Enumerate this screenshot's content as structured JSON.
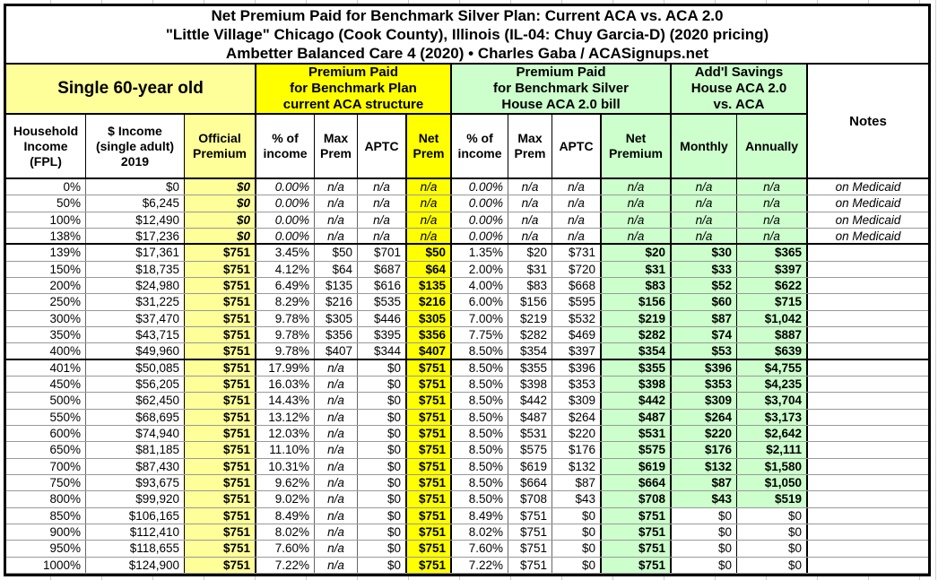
{
  "page": {
    "title_lines": [
      "Net Premium Paid for Benchmark Silver Plan: Current ACA vs. ACA 2.0",
      "\"Little Village\" Chicago (Cook County), Illinois (IL-04: Chuy Garcia-D) (2020 pricing)",
      "Ambetter Balanced Care 4 (2020) • Charles Gaba / ACASignups.net"
    ]
  },
  "colors": {
    "bright_yellow": "#FFFF00",
    "light_yellow": "#FFFF99",
    "light_green": "#CCFFCC",
    "border": "#000000"
  },
  "table": {
    "group_headers": [
      {
        "label": "Single 60-year old",
        "span": 3
      },
      {
        "label": "Premium Paid\nfor Benchmark Plan\ncurrent ACA structure",
        "span": 4
      },
      {
        "label": "Premium Paid\nfor Benchmark Silver\nHouse ACA 2.0 bill",
        "span": 4
      },
      {
        "label": "Add'l Savings\nHouse ACA 2.0\nvs. ACA",
        "span": 2
      }
    ],
    "notes_header": "Notes",
    "column_headers": [
      "Household\nIncome\n(FPL)",
      "$ Income\n(single adult)\n2019",
      "Official\nPremium",
      "% of\nincome",
      "Max\nPrem",
      "APTC",
      "Net\nPrem",
      "% of\nincome",
      "Max\nPrem",
      "APTC",
      "Net\nPremium",
      "Monthly",
      "Annually"
    ]
  },
  "chart_data": {
    "type": "table",
    "title": "Net Premium Paid for Benchmark Silver Plan: Current ACA vs. ACA 2.0",
    "subtitle": "\"Little Village\" Chicago (Cook County), Illinois (IL-04: Chuy Garcia-D) (2020 pricing)",
    "source": "Ambetter Balanced Care 4 (2020) • Charles Gaba / ACASignups.net",
    "columns": [
      "Household Income (FPL)",
      "$ Income (single adult) 2019",
      "Official Premium",
      "ACA % of income",
      "ACA Max Prem",
      "ACA APTC",
      "ACA Net Prem",
      "ACA 2.0 % of income",
      "ACA 2.0 Max Prem",
      "ACA 2.0 APTC",
      "ACA 2.0 Net Premium",
      "Savings Monthly",
      "Savings Annually",
      "Notes"
    ],
    "rows": [
      {
        "cells": [
          "0%",
          "$0",
          "$0",
          "0.00%",
          "n/a",
          "n/a",
          "n/a",
          "0.00%",
          "n/a",
          "n/a",
          "n/a",
          "n/a",
          "n/a",
          "on Medicaid"
        ],
        "style": "medicaid"
      },
      {
        "cells": [
          "50%",
          "$6,245",
          "$0",
          "0.00%",
          "n/a",
          "n/a",
          "n/a",
          "0.00%",
          "n/a",
          "n/a",
          "n/a",
          "n/a",
          "n/a",
          "on Medicaid"
        ],
        "style": "medicaid"
      },
      {
        "cells": [
          "100%",
          "$12,490",
          "$0",
          "0.00%",
          "n/a",
          "n/a",
          "n/a",
          "0.00%",
          "n/a",
          "n/a",
          "n/a",
          "n/a",
          "n/a",
          "on Medicaid"
        ],
        "style": "medicaid"
      },
      {
        "cells": [
          "138%",
          "$17,236",
          "$0",
          "0.00%",
          "n/a",
          "n/a",
          "n/a",
          "0.00%",
          "n/a",
          "n/a",
          "n/a",
          "n/a",
          "n/a",
          "on Medicaid"
        ],
        "style": "medicaid",
        "thickBottom": true
      },
      {
        "cells": [
          "139%",
          "$17,361",
          "$751",
          "3.45%",
          "$50",
          "$701",
          "$50",
          "1.35%",
          "$20",
          "$731",
          "$20",
          "$30",
          "$365",
          ""
        ],
        "style": "normal"
      },
      {
        "cells": [
          "150%",
          "$18,735",
          "$751",
          "4.12%",
          "$64",
          "$687",
          "$64",
          "2.00%",
          "$31",
          "$720",
          "$31",
          "$33",
          "$397",
          ""
        ],
        "style": "normal"
      },
      {
        "cells": [
          "200%",
          "$24,980",
          "$751",
          "6.49%",
          "$135",
          "$616",
          "$135",
          "4.00%",
          "$83",
          "$668",
          "$83",
          "$52",
          "$622",
          ""
        ],
        "style": "normal"
      },
      {
        "cells": [
          "250%",
          "$31,225",
          "$751",
          "8.29%",
          "$216",
          "$535",
          "$216",
          "6.00%",
          "$156",
          "$595",
          "$156",
          "$60",
          "$715",
          ""
        ],
        "style": "normal"
      },
      {
        "cells": [
          "300%",
          "$37,470",
          "$751",
          "9.78%",
          "$305",
          "$446",
          "$305",
          "7.00%",
          "$219",
          "$532",
          "$219",
          "$87",
          "$1,042",
          ""
        ],
        "style": "normal"
      },
      {
        "cells": [
          "350%",
          "$43,715",
          "$751",
          "9.78%",
          "$356",
          "$395",
          "$356",
          "7.75%",
          "$282",
          "$469",
          "$282",
          "$74",
          "$887",
          ""
        ],
        "style": "normal"
      },
      {
        "cells": [
          "400%",
          "$49,960",
          "$751",
          "9.78%",
          "$407",
          "$344",
          "$407",
          "8.50%",
          "$354",
          "$397",
          "$354",
          "$53",
          "$639",
          ""
        ],
        "style": "normal",
        "thickBottom": true
      },
      {
        "cells": [
          "401%",
          "$50,085",
          "$751",
          "17.99%",
          "n/a",
          "$0",
          "$751",
          "8.50%",
          "$355",
          "$396",
          "$355",
          "$396",
          "$4,755",
          ""
        ],
        "style": "normal"
      },
      {
        "cells": [
          "450%",
          "$56,205",
          "$751",
          "16.03%",
          "n/a",
          "$0",
          "$751",
          "8.50%",
          "$398",
          "$353",
          "$398",
          "$353",
          "$4,235",
          ""
        ],
        "style": "normal"
      },
      {
        "cells": [
          "500%",
          "$62,450",
          "$751",
          "14.43%",
          "n/a",
          "$0",
          "$751",
          "8.50%",
          "$442",
          "$309",
          "$442",
          "$309",
          "$3,704",
          ""
        ],
        "style": "normal"
      },
      {
        "cells": [
          "550%",
          "$68,695",
          "$751",
          "13.12%",
          "n/a",
          "$0",
          "$751",
          "8.50%",
          "$487",
          "$264",
          "$487",
          "$264",
          "$3,173",
          ""
        ],
        "style": "normal"
      },
      {
        "cells": [
          "600%",
          "$74,940",
          "$751",
          "12.03%",
          "n/a",
          "$0",
          "$751",
          "8.50%",
          "$531",
          "$220",
          "$531",
          "$220",
          "$2,642",
          ""
        ],
        "style": "normal"
      },
      {
        "cells": [
          "650%",
          "$81,185",
          "$751",
          "11.10%",
          "n/a",
          "$0",
          "$751",
          "8.50%",
          "$575",
          "$176",
          "$575",
          "$176",
          "$2,111",
          ""
        ],
        "style": "normal"
      },
      {
        "cells": [
          "700%",
          "$87,430",
          "$751",
          "10.31%",
          "n/a",
          "$0",
          "$751",
          "8.50%",
          "$619",
          "$132",
          "$619",
          "$132",
          "$1,580",
          ""
        ],
        "style": "normal"
      },
      {
        "cells": [
          "750%",
          "$93,675",
          "$751",
          "9.62%",
          "n/a",
          "$0",
          "$751",
          "8.50%",
          "$664",
          "$87",
          "$664",
          "$87",
          "$1,050",
          ""
        ],
        "style": "normal"
      },
      {
        "cells": [
          "800%",
          "$99,920",
          "$751",
          "9.02%",
          "n/a",
          "$0",
          "$751",
          "8.50%",
          "$708",
          "$43",
          "$708",
          "$43",
          "$519",
          ""
        ],
        "style": "normal"
      },
      {
        "cells": [
          "850%",
          "$106,165",
          "$751",
          "8.49%",
          "n/a",
          "$0",
          "$751",
          "8.49%",
          "$751",
          "$0",
          "$751",
          "$0",
          "$0",
          ""
        ],
        "style": "nosub"
      },
      {
        "cells": [
          "900%",
          "$112,410",
          "$751",
          "8.02%",
          "n/a",
          "$0",
          "$751",
          "8.02%",
          "$751",
          "$0",
          "$751",
          "$0",
          "$0",
          ""
        ],
        "style": "nosub"
      },
      {
        "cells": [
          "950%",
          "$118,655",
          "$751",
          "7.60%",
          "n/a",
          "$0",
          "$751",
          "7.60%",
          "$751",
          "$0",
          "$751",
          "$0",
          "$0",
          ""
        ],
        "style": "nosub"
      },
      {
        "cells": [
          "1000%",
          "$124,900",
          "$751",
          "7.22%",
          "n/a",
          "$0",
          "$751",
          "7.22%",
          "$751",
          "$0",
          "$751",
          "$0",
          "$0",
          ""
        ],
        "style": "nosub"
      }
    ]
  }
}
